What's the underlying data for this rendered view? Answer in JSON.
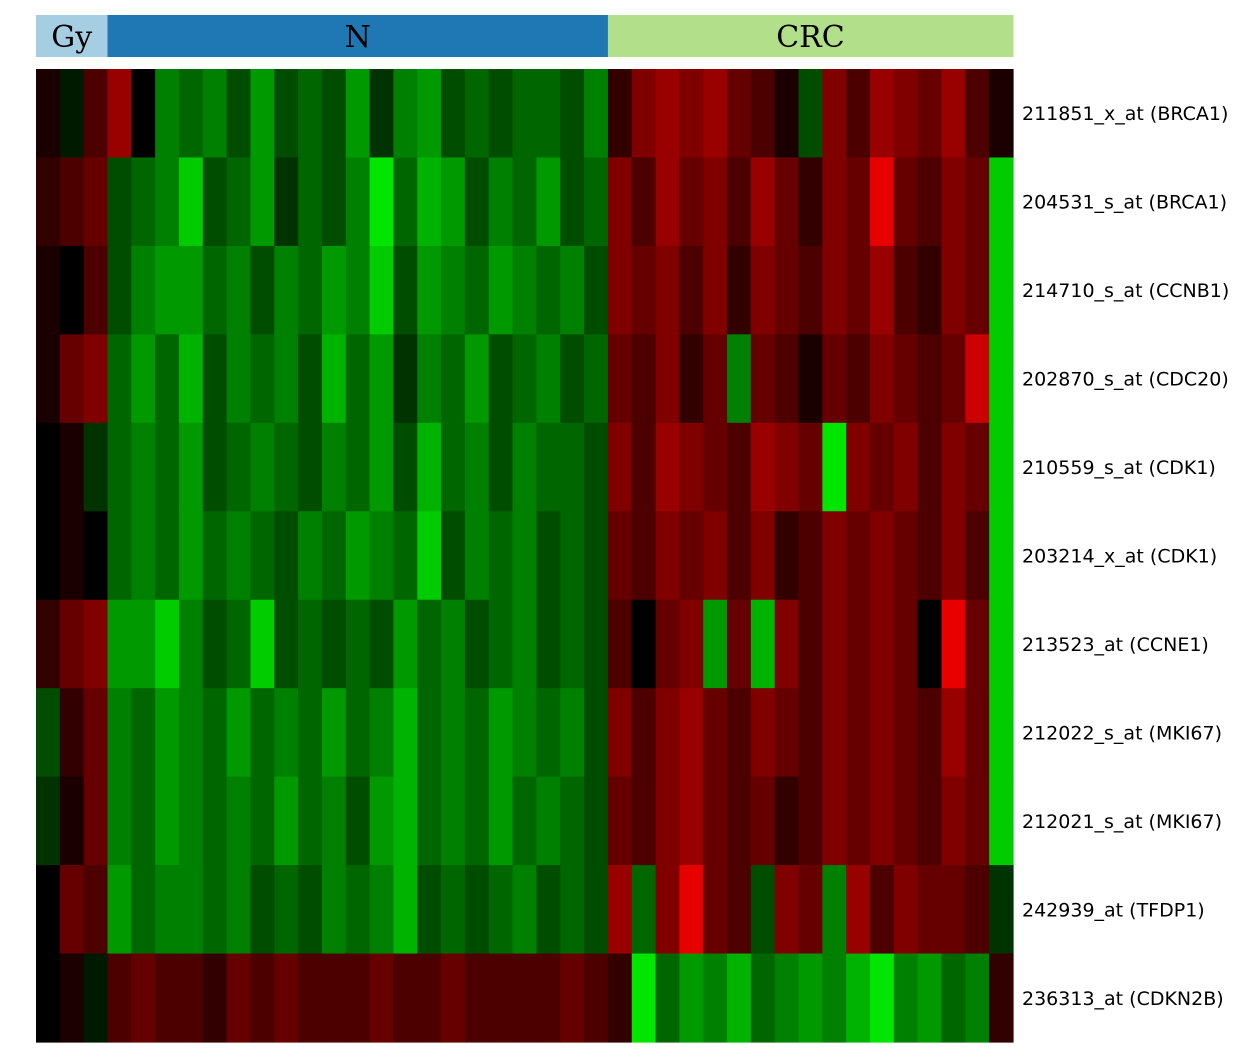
{
  "chart_data": {
    "type": "heatmap",
    "colors": {
      "gy": "#a6cee3",
      "n": "#1f78b4",
      "crc": "#b2df8a",
      "high": "#ff0000",
      "low": "#00ff00",
      "mid": "#000000"
    },
    "groups": [
      {
        "label": "Gy",
        "columns": 3
      },
      {
        "label": "N",
        "columns": 21
      },
      {
        "label": "CRC",
        "columns": 17
      }
    ],
    "rows": [
      {
        "label": "211851_x_at (BRCA1)",
        "values": [
          0.1,
          -0.1,
          0.3,
          0.6,
          0.0,
          -0.5,
          -0.4,
          -0.5,
          -0.3,
          -0.6,
          -0.3,
          -0.4,
          -0.3,
          -0.6,
          -0.2,
          -0.5,
          -0.6,
          -0.3,
          -0.4,
          -0.3,
          -0.4,
          -0.4,
          -0.3,
          -0.5,
          0.2,
          0.5,
          0.6,
          0.5,
          0.6,
          0.4,
          0.3,
          0.1,
          -0.3,
          0.5,
          0.3,
          0.6,
          0.5,
          0.4,
          0.6,
          0.3,
          0.1
        ]
      },
      {
        "label": "204531_s_at (BRCA1)",
        "values": [
          0.2,
          0.3,
          0.4,
          -0.3,
          -0.4,
          -0.5,
          -0.8,
          -0.3,
          -0.4,
          -0.6,
          -0.2,
          -0.4,
          -0.3,
          -0.5,
          -0.9,
          -0.4,
          -0.7,
          -0.6,
          -0.3,
          -0.5,
          -0.4,
          -0.6,
          -0.3,
          -0.4,
          0.5,
          0.3,
          0.6,
          0.4,
          0.5,
          0.3,
          0.6,
          0.4,
          0.2,
          0.5,
          0.4,
          0.9,
          0.4,
          0.3,
          0.5,
          0.4,
          -0.8
        ]
      },
      {
        "label": "214710_s_at (CCNB1)",
        "values": [
          0.1,
          0.0,
          0.3,
          -0.3,
          -0.5,
          -0.6,
          -0.6,
          -0.4,
          -0.5,
          -0.3,
          -0.5,
          -0.4,
          -0.6,
          -0.5,
          -0.8,
          -0.3,
          -0.6,
          -0.5,
          -0.4,
          -0.6,
          -0.5,
          -0.4,
          -0.5,
          -0.3,
          0.5,
          0.4,
          0.5,
          0.3,
          0.5,
          0.2,
          0.5,
          0.4,
          0.3,
          0.5,
          0.4,
          0.6,
          0.3,
          0.2,
          0.5,
          0.4,
          -0.8
        ]
      },
      {
        "label": "202870_s_at (CDC20)",
        "values": [
          0.1,
          0.4,
          0.5,
          -0.4,
          -0.6,
          -0.4,
          -0.7,
          -0.3,
          -0.5,
          -0.4,
          -0.5,
          -0.3,
          -0.7,
          -0.4,
          -0.6,
          -0.2,
          -0.5,
          -0.4,
          -0.6,
          -0.3,
          -0.4,
          -0.5,
          -0.3,
          -0.4,
          0.4,
          0.3,
          0.5,
          0.2,
          0.4,
          -0.5,
          0.4,
          0.3,
          0.1,
          0.4,
          0.3,
          0.5,
          0.4,
          0.3,
          0.4,
          0.8,
          -0.8
        ]
      },
      {
        "label": "210559_s_at (CDK1)",
        "values": [
          0.0,
          0.1,
          -0.2,
          -0.4,
          -0.5,
          -0.4,
          -0.6,
          -0.3,
          -0.4,
          -0.5,
          -0.4,
          -0.3,
          -0.5,
          -0.4,
          -0.6,
          -0.3,
          -0.7,
          -0.4,
          -0.5,
          -0.3,
          -0.5,
          -0.4,
          -0.4,
          -0.3,
          0.5,
          0.3,
          0.6,
          0.5,
          0.4,
          0.3,
          0.6,
          0.5,
          0.4,
          -0.9,
          0.5,
          0.4,
          0.5,
          0.3,
          0.5,
          0.4,
          -0.8
        ]
      },
      {
        "label": "203214_x_at (CDK1)",
        "values": [
          0.0,
          0.1,
          0.0,
          -0.4,
          -0.5,
          -0.4,
          -0.6,
          -0.4,
          -0.5,
          -0.4,
          -0.3,
          -0.5,
          -0.4,
          -0.6,
          -0.5,
          -0.4,
          -0.8,
          -0.3,
          -0.5,
          -0.4,
          -0.5,
          -0.3,
          -0.4,
          -0.3,
          0.4,
          0.3,
          0.5,
          0.4,
          0.5,
          0.3,
          0.5,
          0.2,
          0.3,
          0.5,
          0.4,
          0.5,
          0.4,
          0.3,
          0.5,
          0.3,
          -0.8
        ]
      },
      {
        "label": "213523_at (CCNE1)",
        "values": [
          0.2,
          0.4,
          0.5,
          -0.6,
          -0.6,
          -0.8,
          -0.5,
          -0.3,
          -0.4,
          -0.8,
          -0.3,
          -0.4,
          -0.3,
          -0.4,
          -0.3,
          -0.6,
          -0.4,
          -0.5,
          -0.3,
          -0.4,
          -0.5,
          -0.3,
          -0.4,
          -0.3,
          0.3,
          0.0,
          0.4,
          0.5,
          -0.6,
          0.4,
          -0.7,
          0.5,
          0.3,
          0.5,
          0.4,
          0.5,
          0.4,
          0.0,
          0.9,
          0.4,
          -0.8
        ]
      },
      {
        "label": "212022_s_at (MKI67)",
        "values": [
          -0.3,
          0.2,
          0.4,
          -0.5,
          -0.4,
          -0.6,
          -0.5,
          -0.4,
          -0.6,
          -0.4,
          -0.5,
          -0.4,
          -0.6,
          -0.4,
          -0.5,
          -0.7,
          -0.4,
          -0.5,
          -0.4,
          -0.6,
          -0.5,
          -0.4,
          -0.5,
          -0.3,
          0.5,
          0.3,
          0.5,
          0.6,
          0.4,
          0.3,
          0.5,
          0.4,
          0.3,
          0.5,
          0.4,
          0.5,
          0.4,
          0.3,
          0.6,
          0.4,
          -0.8
        ]
      },
      {
        "label": "212021_s_at (MKI67)",
        "values": [
          -0.2,
          0.1,
          0.4,
          -0.5,
          -0.4,
          -0.6,
          -0.5,
          -0.4,
          -0.5,
          -0.4,
          -0.6,
          -0.4,
          -0.5,
          -0.3,
          -0.6,
          -0.7,
          -0.4,
          -0.5,
          -0.4,
          -0.6,
          -0.4,
          -0.5,
          -0.4,
          -0.3,
          0.4,
          0.3,
          0.5,
          0.6,
          0.4,
          0.3,
          0.4,
          0.2,
          0.3,
          0.5,
          0.4,
          0.5,
          0.4,
          0.3,
          0.5,
          0.4,
          -0.8
        ]
      },
      {
        "label": "242939_at (TFDP1)",
        "values": [
          0.0,
          0.4,
          0.3,
          -0.6,
          -0.4,
          -0.5,
          -0.5,
          -0.4,
          -0.5,
          -0.3,
          -0.4,
          -0.3,
          -0.5,
          -0.4,
          -0.5,
          -0.7,
          -0.3,
          -0.4,
          -0.3,
          -0.4,
          -0.5,
          -0.3,
          -0.4,
          -0.3,
          0.6,
          -0.4,
          0.5,
          0.9,
          0.4,
          0.3,
          -0.3,
          0.5,
          0.4,
          -0.5,
          0.6,
          0.3,
          0.5,
          0.4,
          0.4,
          0.3,
          -0.2
        ]
      },
      {
        "label": "236313_at (CDKN2B)",
        "values": [
          0.0,
          0.1,
          -0.1,
          0.3,
          0.4,
          0.3,
          0.3,
          0.2,
          0.4,
          0.3,
          0.4,
          0.3,
          0.3,
          0.3,
          0.4,
          0.3,
          0.3,
          0.4,
          0.3,
          0.3,
          0.3,
          0.3,
          0.4,
          0.3,
          0.2,
          -0.9,
          -0.4,
          -0.6,
          -0.5,
          -0.7,
          -0.4,
          -0.5,
          -0.6,
          -0.5,
          -0.7,
          -0.9,
          -0.5,
          -0.6,
          -0.4,
          -0.5,
          0.2
        ]
      }
    ]
  }
}
